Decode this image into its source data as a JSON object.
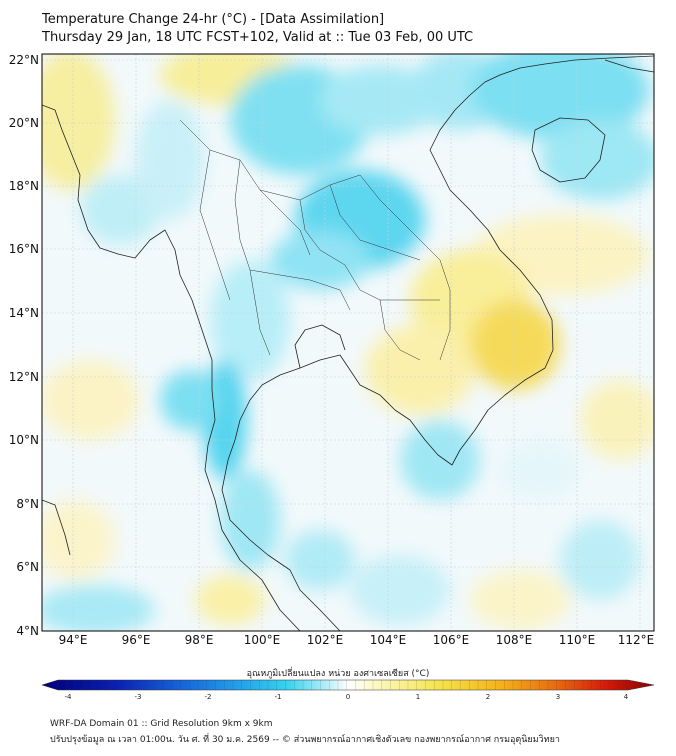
{
  "header": {
    "title": "Temperature Change 24-hr (°C) - [Data Assimilation]",
    "subtitle": "Thursday 29 Jan, 18 UTC FCST+102, Valid at :: Tue 03 Feb, 00 UTC"
  },
  "map": {
    "lat_ticks": [
      "22°N",
      "20°N",
      "18°N",
      "16°N",
      "14°N",
      "12°N",
      "10°N",
      "8°N",
      "6°N",
      "4°N"
    ],
    "lon_ticks": [
      "94°E",
      "96°E",
      "98°E",
      "100°E",
      "102°E",
      "104°E",
      "106°E",
      "108°E",
      "110°E",
      "112°E"
    ],
    "extent": {
      "lon_min": 93,
      "lon_max": 112.5,
      "lat_min": 4,
      "lat_max": 22.2
    }
  },
  "colorbar": {
    "title": "อุณหภูมิเปลี่ยนแปลง หน่วย องศาเซลเซียส (°C)",
    "ticks": [
      "-4",
      "-3",
      "-2",
      "-1",
      "0",
      "1",
      "2",
      "3",
      "4"
    ],
    "colors": [
      "#00007a",
      "#0a1fb0",
      "#1560d8",
      "#23a6ea",
      "#36d2ee",
      "#9aeaf6",
      "#ffffff",
      "#fbf6b0",
      "#f5e34a",
      "#f4b21a",
      "#e86a10",
      "#d41c0a",
      "#8a0000"
    ]
  },
  "footer": {
    "line1": "WRF-DA Domain 01 :: Grid Resolution 9km x 9km",
    "line2": "ปรับปรุงข้อมูล ณ เวลา 01:00น. วัน ศ. ที่ 30 ม.ค. 2569 -- © ส่วนพยากรณ์อากาศเชิงตัวเลข กองพยากรณ์อากาศ กรมอุตุนิยมวิทยา"
  }
}
